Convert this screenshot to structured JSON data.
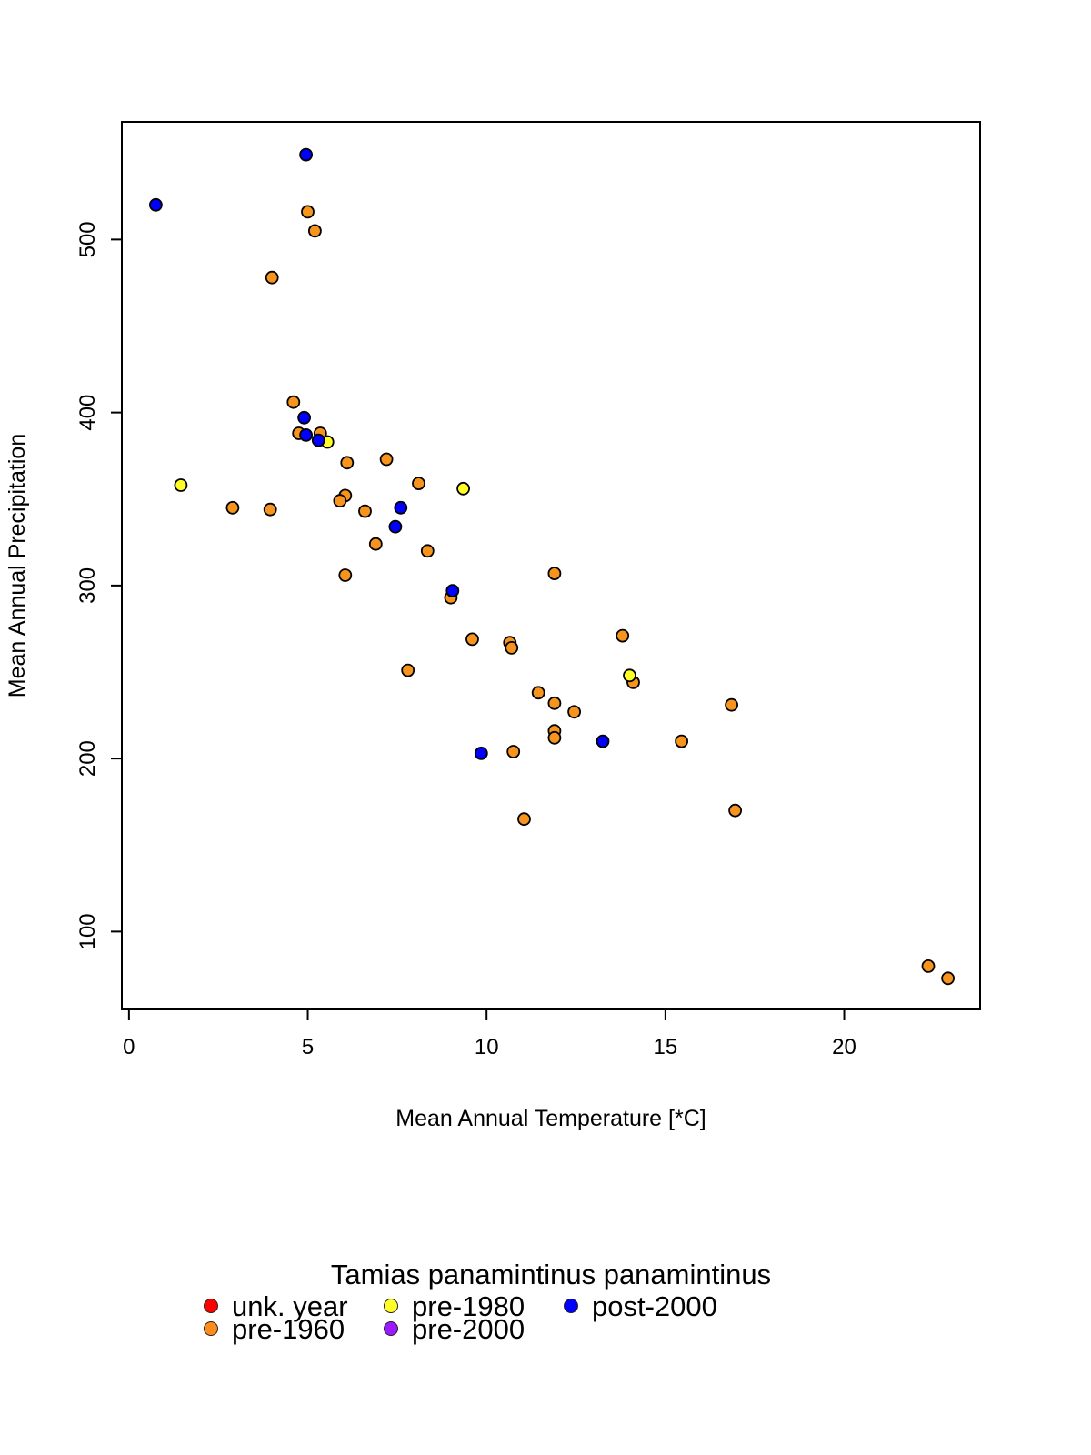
{
  "chart_data": {
    "type": "scatter",
    "title": "",
    "xlabel": "Mean Annual Temperature [*C]",
    "ylabel": "Mean Annual Precipitation",
    "xlim": [
      -0.2,
      23.8
    ],
    "ylim": [
      55,
      568
    ],
    "x_ticks": [
      0,
      5,
      10,
      15,
      20
    ],
    "y_ticks": [
      100,
      200,
      300,
      400,
      500
    ],
    "grid": false,
    "legend": {
      "title": "Tamias panamintinus panamintinus",
      "placement": "bottom",
      "entries": [
        {
          "label": "unk. year",
          "color": "#ff0000"
        },
        {
          "label": "pre-1960",
          "color": "#ff8c1a"
        },
        {
          "label": "pre-1980",
          "color": "#ffff26"
        },
        {
          "label": "pre-2000",
          "color": "#9b1aff"
        },
        {
          "label": "post-2000",
          "color": "#0000ff"
        }
      ]
    },
    "series": [
      {
        "name": "pre-1960",
        "color": "#f7941d",
        "points": [
          [
            5.0,
            516
          ],
          [
            5.2,
            505
          ],
          [
            4.0,
            478
          ],
          [
            4.6,
            406
          ],
          [
            4.75,
            388
          ],
          [
            5.35,
            388
          ],
          [
            6.1,
            371
          ],
          [
            7.2,
            373
          ],
          [
            8.1,
            359
          ],
          [
            6.05,
            352
          ],
          [
            5.9,
            349
          ],
          [
            6.6,
            343
          ],
          [
            2.9,
            345
          ],
          [
            3.95,
            344
          ],
          [
            6.9,
            324
          ],
          [
            8.35,
            320
          ],
          [
            6.05,
            306
          ],
          [
            9.0,
            293
          ],
          [
            11.9,
            307
          ],
          [
            9.6,
            269
          ],
          [
            10.65,
            267
          ],
          [
            10.7,
            264
          ],
          [
            7.8,
            251
          ],
          [
            13.8,
            271
          ],
          [
            14.1,
            244
          ],
          [
            11.45,
            238
          ],
          [
            11.9,
            232
          ],
          [
            12.45,
            227
          ],
          [
            16.85,
            231
          ],
          [
            11.9,
            216
          ],
          [
            11.9,
            212
          ],
          [
            15.45,
            210
          ],
          [
            10.75,
            204
          ],
          [
            11.05,
            165
          ],
          [
            16.95,
            170
          ],
          [
            22.35,
            80
          ],
          [
            22.9,
            73
          ]
        ]
      },
      {
        "name": "pre-1980",
        "color": "#ffff26",
        "points": [
          [
            1.45,
            358
          ],
          [
            5.55,
            383
          ],
          [
            9.35,
            356
          ],
          [
            14.0,
            248
          ]
        ]
      },
      {
        "name": "post-2000",
        "color": "#0000ff",
        "points": [
          [
            0.75,
            520
          ],
          [
            4.95,
            549
          ],
          [
            4.9,
            397
          ],
          [
            4.95,
            387
          ],
          [
            5.3,
            384
          ],
          [
            7.6,
            345
          ],
          [
            7.45,
            334
          ],
          [
            9.05,
            297
          ],
          [
            9.85,
            203
          ],
          [
            13.25,
            210
          ]
        ]
      }
    ]
  }
}
